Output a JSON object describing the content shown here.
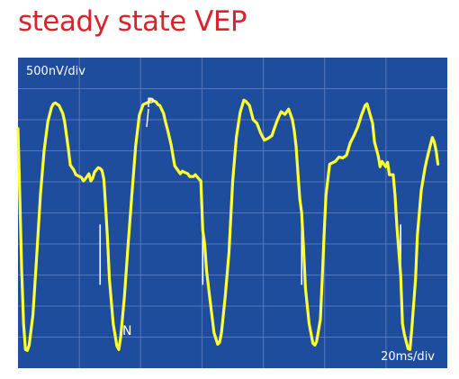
{
  "title": "steady state VEP",
  "colors": {
    "title": "#d9232d",
    "plot_background": "#1f4d9e",
    "grid": "#5578bb",
    "trace": "#ffff33",
    "text": "#ffffff"
  },
  "chart_data": {
    "type": "line",
    "title": "steady state VEP",
    "amplitude_scale": "500nV/div",
    "time_scale": "20ms/div",
    "grid": true,
    "annotations": [
      "P",
      "N"
    ],
    "x_unit": "ms",
    "y_unit": "nV",
    "x_range": [
      0,
      230
    ],
    "y_range": [
      -2000,
      1500
    ],
    "stimulus_marker_times_ms": [
      44,
      99,
      152,
      205
    ],
    "series": [
      {
        "color": "#ffff33",
        "points": [
          [
            0,
            700
          ],
          [
            1,
            -100
          ],
          [
            2,
            -900
          ],
          [
            3,
            -1500
          ],
          [
            4,
            -1790
          ],
          [
            5,
            -1800
          ],
          [
            6,
            -1740
          ],
          [
            8,
            -1400
          ],
          [
            10,
            -750
          ],
          [
            12,
            -50
          ],
          [
            14,
            450
          ],
          [
            16,
            780
          ],
          [
            18,
            940
          ],
          [
            19,
            980
          ],
          [
            20,
            990
          ],
          [
            22,
            960
          ],
          [
            24,
            870
          ],
          [
            25,
            780
          ],
          [
            27,
            470
          ],
          [
            28,
            290
          ],
          [
            30,
            230
          ],
          [
            31,
            180
          ],
          [
            33,
            160
          ],
          [
            34,
            150
          ],
          [
            35,
            110
          ],
          [
            36,
            130
          ],
          [
            38,
            190
          ],
          [
            39,
            110
          ],
          [
            40,
            140
          ],
          [
            41,
            210
          ],
          [
            43,
            260
          ],
          [
            44,
            250
          ],
          [
            45,
            230
          ],
          [
            46,
            130
          ],
          [
            47,
            -200
          ],
          [
            48,
            -550
          ],
          [
            49,
            -1000
          ],
          [
            51,
            -1500
          ],
          [
            53,
            -1750
          ],
          [
            54,
            -1790
          ],
          [
            55,
            -1650
          ],
          [
            57,
            -1200
          ],
          [
            59,
            -600
          ],
          [
            61,
            -50
          ],
          [
            63,
            500
          ],
          [
            65,
            850
          ],
          [
            67,
            970
          ],
          [
            70,
            1000
          ],
          [
            71,
            1030
          ],
          [
            74,
            1000
          ],
          [
            75,
            970
          ],
          [
            76,
            960
          ],
          [
            78,
            870
          ],
          [
            79,
            780
          ],
          [
            80,
            700
          ],
          [
            82,
            520
          ],
          [
            83,
            400
          ],
          [
            84,
            280
          ],
          [
            87,
            190
          ],
          [
            88,
            220
          ],
          [
            91,
            190
          ],
          [
            92,
            160
          ],
          [
            93,
            160
          ],
          [
            94,
            160
          ],
          [
            95,
            180
          ],
          [
            97,
            130
          ],
          [
            98,
            110
          ],
          [
            99,
            -450
          ],
          [
            100,
            -600
          ],
          [
            101,
            -900
          ],
          [
            103,
            -1250
          ],
          [
            105,
            -1600
          ],
          [
            107,
            -1730
          ],
          [
            108,
            -1710
          ],
          [
            109,
            -1600
          ],
          [
            111,
            -1200
          ],
          [
            113,
            -700
          ],
          [
            115,
            100
          ],
          [
            117,
            600
          ],
          [
            119,
            880
          ],
          [
            121,
            1020
          ],
          [
            122,
            1010
          ],
          [
            124,
            960
          ],
          [
            126,
            800
          ],
          [
            128,
            760
          ],
          [
            130,
            650
          ],
          [
            132,
            570
          ],
          [
            134,
            590
          ],
          [
            136,
            620
          ],
          [
            137,
            680
          ],
          [
            139,
            800
          ],
          [
            141,
            890
          ],
          [
            143,
            860
          ],
          [
            145,
            920
          ],
          [
            147,
            800
          ],
          [
            148,
            680
          ],
          [
            149,
            500
          ],
          [
            150,
            190
          ],
          [
            151,
            -100
          ],
          [
            152,
            -250
          ],
          [
            153,
            -650
          ],
          [
            154,
            -1100
          ],
          [
            156,
            -1500
          ],
          [
            158,
            -1720
          ],
          [
            159,
            -1740
          ],
          [
            160,
            -1700
          ],
          [
            162,
            -1450
          ],
          [
            163,
            -1000
          ],
          [
            164,
            -500
          ],
          [
            165,
            -50
          ],
          [
            167,
            300
          ],
          [
            170,
            330
          ],
          [
            172,
            380
          ],
          [
            174,
            370
          ],
          [
            176,
            400
          ],
          [
            177,
            470
          ],
          [
            178,
            540
          ],
          [
            180,
            620
          ],
          [
            182,
            720
          ],
          [
            184,
            850
          ],
          [
            186,
            960
          ],
          [
            187,
            980
          ],
          [
            189,
            830
          ],
          [
            190,
            760
          ],
          [
            191,
            550
          ],
          [
            193,
            390
          ],
          [
            194,
            270
          ],
          [
            195,
            330
          ],
          [
            197,
            270
          ],
          [
            198,
            320
          ],
          [
            199,
            180
          ],
          [
            201,
            180
          ],
          [
            202,
            -50
          ],
          [
            203,
            -400
          ],
          [
            205,
            -950
          ],
          [
            206,
            -1500
          ],
          [
            207,
            -1620
          ],
          [
            209,
            -1780
          ],
          [
            210,
            -1790
          ],
          [
            211,
            -1550
          ],
          [
            213,
            -1000
          ],
          [
            214,
            -500
          ],
          [
            216,
            0
          ],
          [
            218,
            250
          ],
          [
            219,
            350
          ],
          [
            221,
            520
          ],
          [
            222,
            600
          ],
          [
            223,
            550
          ],
          [
            224,
            450
          ],
          [
            225,
            300
          ]
        ]
      }
    ]
  }
}
